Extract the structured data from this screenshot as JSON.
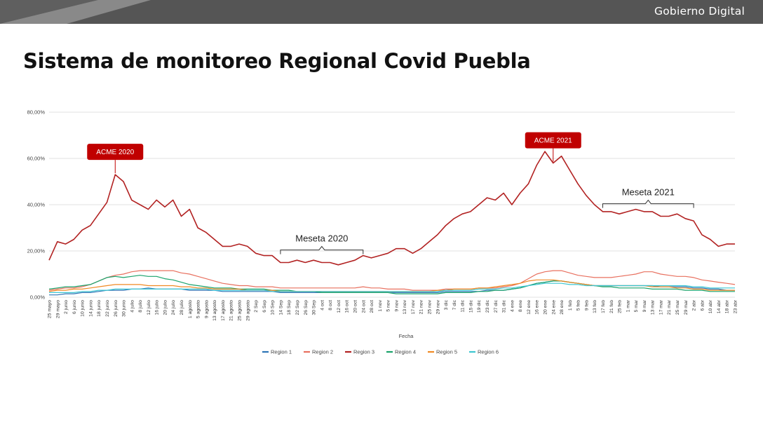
{
  "header": {
    "brand": "Gobierno Digital"
  },
  "title": "Sistema de monitoreo Regional Covid Puebla",
  "colors": {
    "topbar": "#5f5f5f",
    "acme_box": "#c00000",
    "region1": "#2e75b6",
    "region2": "#e8705f",
    "region3": "#b22222",
    "region4": "#1aa36b",
    "region5": "#f08a24",
    "region6": "#3ec6d1"
  },
  "chart_data": {
    "type": "line",
    "xlabel": "Fecha",
    "ylabel": "",
    "ylim": [
      0,
      80
    ],
    "yticks": [
      "0,00%",
      "20,00%",
      "40,00%",
      "60,00%",
      "80,00%"
    ],
    "grid": "horizontal",
    "legend_position": "bottom",
    "categories": [
      "25 mayo",
      "29 mayo",
      "2 junio",
      "6 junio",
      "10 junio",
      "14 junio",
      "18 junio",
      "22 junio",
      "26 junio",
      "30 junio",
      "4 julio",
      "8 julio",
      "12 julio",
      "16 julio",
      "20 julio",
      "24 julio",
      "28 julio",
      "1 agosto",
      "5 agosto",
      "9 agosto",
      "13 agosto",
      "17 agosto",
      "21 agosto",
      "25 agosto",
      "29 agosto",
      "2 Sep",
      "6 Sep",
      "10 Sep",
      "14 Sep",
      "18 Sep",
      "22 Sep",
      "26 Sep",
      "30 Sep",
      "4 oct",
      "8 oct",
      "12 oct",
      "16 oct",
      "20 oct",
      "24 oct",
      "28 oct",
      "1 nov",
      "5 nov",
      "9 nov",
      "13 nov",
      "17 nov",
      "21 nov",
      "25 nov",
      "29 nov",
      "3 dic",
      "7 dic",
      "11 dic",
      "15 dic",
      "19 dic",
      "23 dic",
      "27 dic",
      "31 dic",
      "4 ene",
      "8 ene",
      "12 ene",
      "16 ene",
      "20 ene",
      "24 ene",
      "28 ene",
      "1 feb",
      "5 feb",
      "9 feb",
      "13 feb",
      "17 feb",
      "21 feb",
      "25 feb",
      "1 mar",
      "5 mar",
      "9 mar",
      "13 mar",
      "17 mar",
      "21 mar",
      "25 mar",
      "29 mar",
      "2 abr",
      "6 abr",
      "10 abr",
      "14 abr",
      "18 abr",
      "23 abr"
    ],
    "series": [
      {
        "name": "Region 1",
        "color": "#2e75b6",
        "values": [
          1,
          1,
          1.5,
          1.5,
          2,
          2,
          2.5,
          3,
          3,
          3,
          3.5,
          3.5,
          4,
          3.5,
          3.5,
          3.5,
          3.5,
          3,
          3,
          3,
          3,
          2.5,
          2.5,
          2.5,
          2.5,
          2.5,
          2.5,
          2.5,
          2,
          2,
          2,
          2,
          2,
          2,
          2,
          2,
          2,
          2,
          2,
          2,
          2,
          2,
          2,
          2,
          2,
          2,
          2,
          2,
          2.5,
          2.5,
          2.5,
          2.5,
          2.5,
          3,
          3,
          3,
          3.5,
          4,
          5,
          6,
          6.5,
          7,
          7,
          6.5,
          6,
          5.5,
          5,
          5,
          5,
          5,
          5,
          5,
          5,
          5,
          4.5,
          4.5,
          4.5,
          4.5,
          4,
          4,
          3.5,
          3.5,
          3,
          3
        ]
      },
      {
        "name": "Region 2",
        "color": "#e8705f",
        "values": [
          3,
          3.5,
          4,
          4,
          4.5,
          5.5,
          7,
          8.5,
          9.5,
          10,
          11,
          11.5,
          11.5,
          11.5,
          11.5,
          11.5,
          10.5,
          10,
          9,
          8,
          7,
          6,
          5.5,
          5,
          5,
          4.5,
          4.5,
          4.5,
          4,
          4,
          4,
          4,
          4,
          4,
          4,
          4,
          4,
          4,
          4.5,
          4,
          4,
          3.5,
          3.5,
          3.5,
          3,
          3,
          3,
          3,
          3.5,
          3.5,
          3.5,
          3.5,
          4,
          4,
          4,
          4.5,
          5,
          6,
          8,
          10,
          11,
          11.5,
          11.5,
          10.5,
          9.5,
          9,
          8.5,
          8.5,
          8.5,
          9,
          9.5,
          10,
          11,
          11,
          10,
          9.5,
          9,
          9,
          8.5,
          7.5,
          7,
          6.5,
          6,
          5.5
        ]
      },
      {
        "name": "Region 3",
        "color": "#b22222",
        "values": [
          16,
          24,
          23,
          25,
          29,
          31,
          36,
          41,
          53,
          50,
          42,
          40,
          38,
          42,
          39,
          42,
          35,
          38,
          30,
          28,
          25,
          22,
          22,
          23,
          22,
          19,
          18,
          18,
          15,
          15,
          16,
          15,
          16,
          15,
          15,
          14,
          15,
          16,
          18,
          17,
          18,
          19,
          21,
          21,
          19,
          21,
          24,
          27,
          31,
          34,
          36,
          37,
          40,
          43,
          42,
          45,
          40,
          45,
          49,
          57,
          63,
          58,
          61,
          55,
          49,
          44,
          40,
          37,
          37,
          36,
          37,
          38,
          37,
          37,
          35,
          35,
          36,
          34,
          33,
          27,
          25,
          22,
          23,
          23
        ]
      },
      {
        "name": "Region 4",
        "color": "#1aa36b",
        "values": [
          3.5,
          4,
          4.5,
          4.5,
          5,
          5.5,
          7,
          8.5,
          9,
          8.5,
          9,
          9.5,
          9,
          9,
          8,
          7.5,
          6.5,
          5.5,
          5,
          4.5,
          4,
          4,
          4,
          3.5,
          3.5,
          3.5,
          3.5,
          3,
          3,
          3,
          2.5,
          2.5,
          2.5,
          2,
          2,
          2,
          2,
          2,
          2,
          2,
          2,
          2,
          1.5,
          1.5,
          1.5,
          1.5,
          1.5,
          1.5,
          2,
          2,
          2,
          2,
          2.5,
          2.5,
          3,
          3,
          3.5,
          4,
          5,
          6,
          6.5,
          7,
          7,
          6.5,
          6,
          5.5,
          5,
          4.5,
          4.5,
          4,
          4,
          4,
          4,
          3.5,
          3.5,
          3.5,
          3.5,
          3,
          3,
          3,
          2.5,
          2.5,
          2.5,
          2.5
        ]
      },
      {
        "name": "Region 5",
        "color": "#f08a24",
        "values": [
          2.5,
          3,
          3,
          3.5,
          3.5,
          4,
          4.5,
          5,
          5.5,
          5.5,
          5.5,
          5.5,
          5,
          5,
          5,
          5,
          4.5,
          4.5,
          4,
          4,
          3.5,
          3.5,
          3.5,
          3.5,
          3,
          3,
          3,
          3,
          2.5,
          2.5,
          2.5,
          2.5,
          2.5,
          2.5,
          2.5,
          2.5,
          2.5,
          2.5,
          2.5,
          2.5,
          2.5,
          2.5,
          2.5,
          2.5,
          2.5,
          2.5,
          2.5,
          3,
          3,
          3.5,
          3.5,
          3.5,
          4,
          4,
          4.5,
          5,
          5.5,
          6,
          7,
          7.5,
          7.5,
          7.5,
          7,
          6.5,
          6,
          5.5,
          5,
          5,
          5,
          5,
          5,
          5,
          5,
          4.5,
          4.5,
          4.5,
          4,
          4,
          3.5,
          3.5,
          3,
          3,
          3,
          3
        ]
      },
      {
        "name": "Region 6",
        "color": "#3ec6d1",
        "values": [
          2,
          2,
          2,
          2,
          2.5,
          2.5,
          3,
          3,
          3.5,
          3.5,
          3.5,
          3.5,
          3.5,
          3.5,
          3.5,
          3.5,
          3.5,
          3.5,
          3.5,
          3.5,
          3,
          3,
          3,
          3,
          3,
          3,
          3,
          2.5,
          2.5,
          2.5,
          2.5,
          2.5,
          2.5,
          2.5,
          2.5,
          2.5,
          2.5,
          2.5,
          2.5,
          2.5,
          2.5,
          2.5,
          2.5,
          2.5,
          2.5,
          2.5,
          2.5,
          2.5,
          3,
          3,
          3,
          3,
          3.5,
          3.5,
          3.5,
          4,
          4,
          4.5,
          5,
          5.5,
          6,
          6,
          6,
          5.5,
          5.5,
          5,
          5,
          5,
          5,
          5,
          5,
          5,
          5,
          5,
          5,
          5,
          5,
          5,
          4.5,
          4.5,
          4,
          4,
          4,
          4
        ]
      }
    ],
    "annotations": [
      {
        "label": "ACME 2020",
        "kind": "box",
        "at": "26 junio"
      },
      {
        "label": "ACME 2021",
        "kind": "box",
        "at": "24 ene"
      },
      {
        "label": "Meseta 2020",
        "kind": "bracket",
        "from": "14 Sep",
        "to": "24 oct"
      },
      {
        "label": "Meseta 2021",
        "kind": "bracket",
        "from": "17 feb",
        "to": "2 abr"
      }
    ]
  }
}
